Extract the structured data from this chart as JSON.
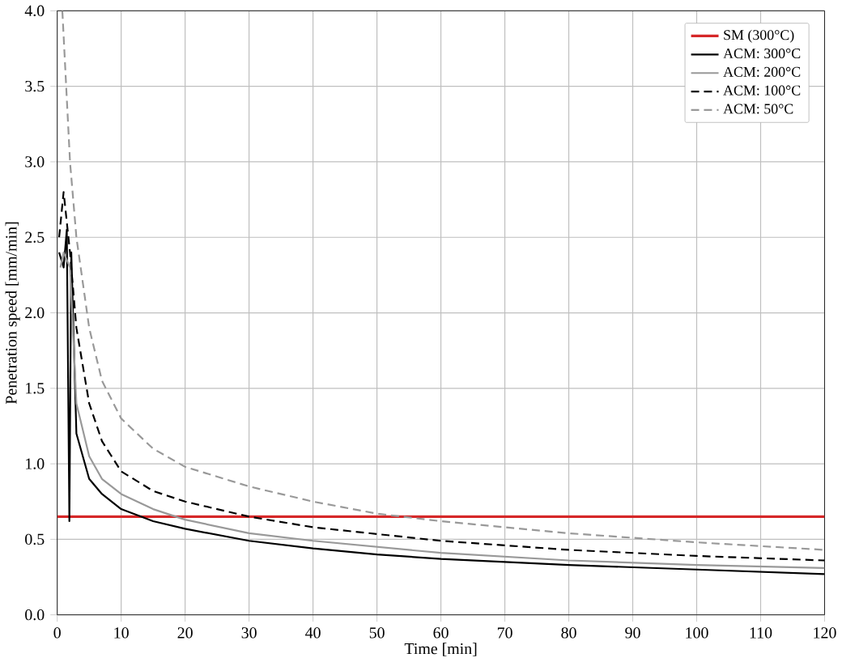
{
  "chart_data": {
    "type": "line",
    "xlabel": "Time [min]",
    "ylabel": "Penetration speed [mm/min]",
    "xlim": [
      0,
      120
    ],
    "ylim": [
      0.0,
      4.0
    ],
    "xticks": [
      0,
      10,
      20,
      30,
      40,
      50,
      60,
      70,
      80,
      90,
      100,
      110,
      120
    ],
    "yticks": [
      {
        "value": 0,
        "label": "0.0"
      },
      {
        "value": 0.5,
        "label": "0.5"
      },
      {
        "value": 1,
        "label": "1.0"
      },
      {
        "value": 1.5,
        "label": "1.5"
      },
      {
        "value": 2,
        "label": "2.0"
      },
      {
        "value": 2.5,
        "label": "2.5"
      },
      {
        "value": 3,
        "label": "3.0"
      },
      {
        "value": 3.5,
        "label": "3.5"
      },
      {
        "value": 4,
        "label": "4.0"
      }
    ],
    "grid": true,
    "legend": "top right",
    "marker": "none",
    "series": [
      {
        "name": "SM (300°C)",
        "color": "#d62728",
        "line_style": "solid",
        "x": [
          0,
          120
        ],
        "values": [
          0.65,
          0.65
        ]
      },
      {
        "name": "ACM: 300°C",
        "color": "#000000",
        "line_style": "solid",
        "x": [
          0.3,
          1.0,
          1.5,
          1.9,
          2.2,
          3,
          5,
          7,
          10,
          15,
          20,
          30,
          40,
          50,
          60,
          80,
          100,
          120
        ],
        "values": [
          2.4,
          2.3,
          2.55,
          0.62,
          2.4,
          1.2,
          0.9,
          0.8,
          0.7,
          0.62,
          0.57,
          0.49,
          0.44,
          0.4,
          0.37,
          0.33,
          0.3,
          0.27
        ]
      },
      {
        "name": "ACM: 200°C",
        "color": "#999999",
        "line_style": "solid",
        "x": [
          0.5,
          1,
          2,
          3,
          5,
          7,
          10,
          15,
          20,
          30,
          40,
          60,
          80,
          100,
          120
        ],
        "values": [
          2.3,
          2.4,
          2.3,
          1.4,
          1.05,
          0.9,
          0.8,
          0.7,
          0.63,
          0.54,
          0.49,
          0.41,
          0.36,
          0.33,
          0.31
        ]
      },
      {
        "name": "ACM: 100°C",
        "color": "#000000",
        "line_style": "dashed",
        "x": [
          0.3,
          1,
          2,
          3,
          5,
          7,
          10,
          15,
          20,
          30,
          40,
          60,
          80,
          100,
          120
        ],
        "values": [
          2.5,
          2.8,
          2.4,
          1.9,
          1.4,
          1.15,
          0.95,
          0.82,
          0.75,
          0.65,
          0.58,
          0.49,
          0.43,
          0.39,
          0.36
        ]
      },
      {
        "name": "ACM: 50°C",
        "color": "#999999",
        "line_style": "dashed",
        "x": [
          0.8,
          2,
          3,
          5,
          7,
          10,
          15,
          20,
          30,
          40,
          50,
          60,
          80,
          100,
          120
        ],
        "values": [
          4.0,
          3.0,
          2.5,
          1.9,
          1.55,
          1.3,
          1.1,
          0.98,
          0.85,
          0.75,
          0.67,
          0.62,
          0.54,
          0.48,
          0.43
        ]
      }
    ]
  }
}
